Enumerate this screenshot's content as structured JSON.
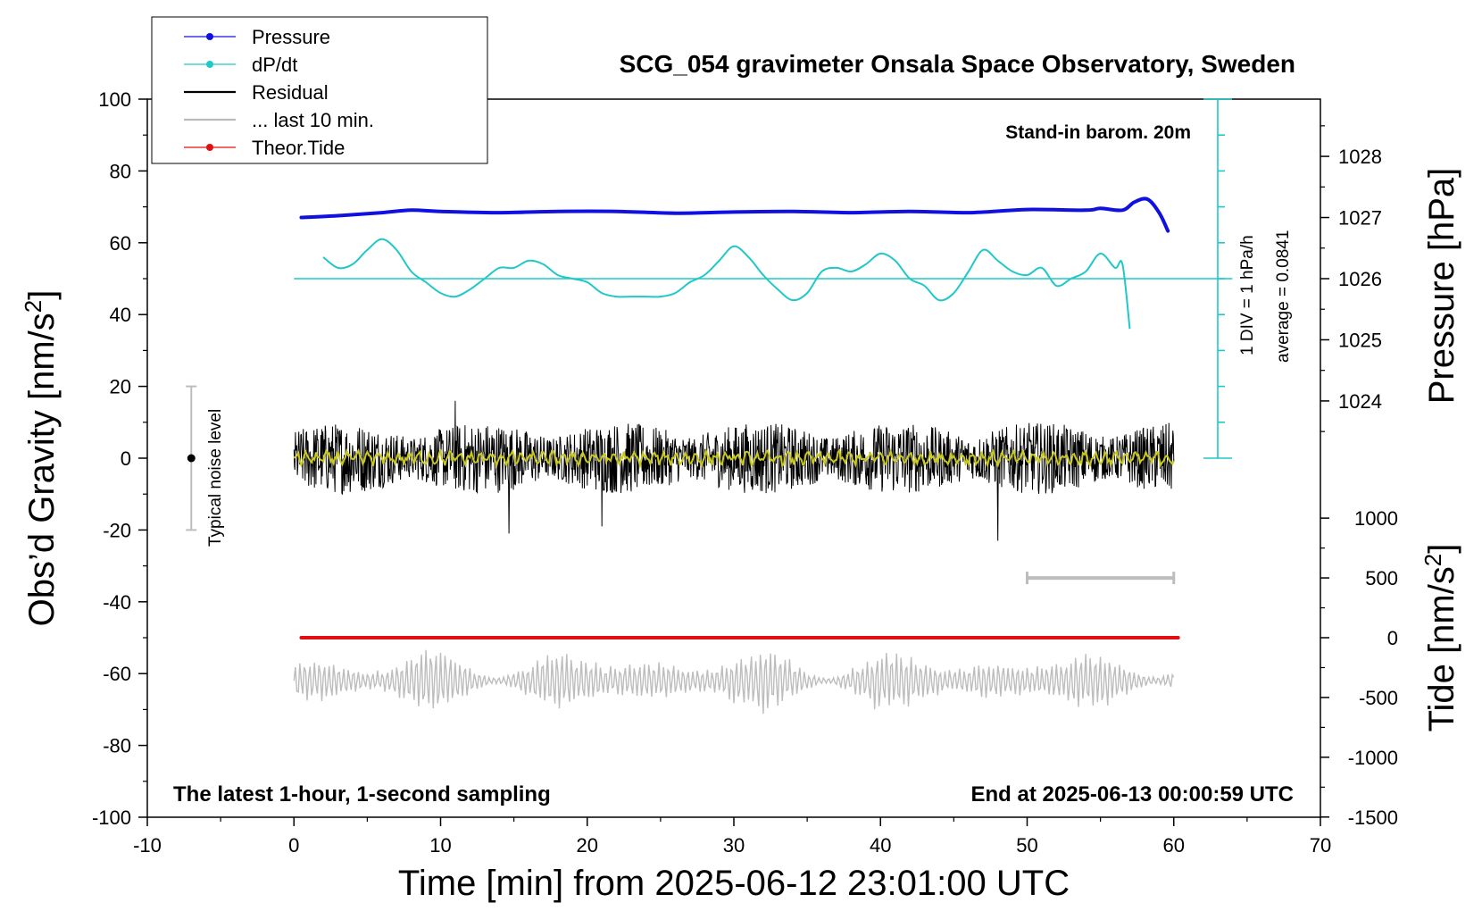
{
  "chart_data": {
    "type": "line",
    "title": "SCG_054 gravimeter Onsala Space Observatory, Sweden",
    "xlabel": "Time [min] from 2025-06-12 23:01:00 UTC",
    "ylabel_main": "Obs’d Gravity [nm/s",
    "ylabel_main_sup": "2",
    "ylabel_main_end": "]",
    "ylabel_pressure": "Pressure [hPa]",
    "ylabel_tide": "Tide [nm/s",
    "ylabel_tide_sup": "2",
    "ylabel_tide_end": "]",
    "xlim": [
      -10,
      70
    ],
    "ylim": [
      -100,
      100
    ],
    "x_ticks": [
      "-10",
      "0",
      "10",
      "20",
      "30",
      "40",
      "50",
      "60",
      "70"
    ],
    "y_ticks": [
      "100",
      "80",
      "60",
      "40",
      "20",
      "0",
      "-20",
      "-40",
      "-60",
      "-80",
      "-100"
    ],
    "pressure_ticks": [
      {
        "label": "1028",
        "value": 1028
      },
      {
        "label": "1027",
        "value": 1027
      },
      {
        "label": "1026",
        "value": 1026
      },
      {
        "label": "1025",
        "value": 1025
      },
      {
        "label": "1024",
        "value": 1024
      }
    ],
    "tide_ticks": [
      {
        "label": "1000",
        "value": 1000
      },
      {
        "label": "500",
        "value": 500
      },
      {
        "label": "0",
        "value": 0
      },
      {
        "label": "-500",
        "value": -500
      },
      {
        "label": "-1000",
        "value": -1000
      },
      {
        "label": "-1500",
        "value": -1500
      }
    ],
    "legend": [
      {
        "name": "Pressure",
        "color": "#1010e0",
        "style": "line-dot"
      },
      {
        "name": "dP/dt",
        "color": "#20c8c8",
        "style": "line-dot"
      },
      {
        "name": "Residual",
        "color": "#000000",
        "style": "line"
      },
      {
        "name": "... last 10 min.",
        "color": "#bbbbbb",
        "style": "line"
      },
      {
        "name": "Theor.Tide",
        "color": "#e01010",
        "style": "line-dot"
      }
    ],
    "legend_position": "top-left",
    "annotations": {
      "stand_in": "Stand-in barom. 20m",
      "div_scale": "1 DIV = 1 hPa/h",
      "average": "average = 0.0841",
      "noise": "Typical noise level",
      "latest": "The latest 1-hour, 1-second sampling",
      "end_at": "End at 2025-06-13 00:00:59 UTC"
    },
    "pressure_series": {
      "x": [
        0.5,
        3,
        6,
        8,
        10,
        14,
        18,
        22,
        26,
        30,
        34,
        38,
        42,
        46,
        50,
        54,
        55,
        56.5,
        57.3,
        58.2,
        59,
        59.6
      ],
      "hPa": [
        1027.0,
        1027.03,
        1027.08,
        1027.12,
        1027.1,
        1027.08,
        1027.1,
        1027.1,
        1027.07,
        1027.09,
        1027.1,
        1027.08,
        1027.1,
        1027.08,
        1027.13,
        1027.12,
        1027.15,
        1027.12,
        1027.25,
        1027.3,
        1027.08,
        1026.78
      ]
    },
    "dpdt_series": {
      "x": [
        2,
        3,
        4,
        5,
        6,
        7,
        8,
        9,
        10,
        11,
        12,
        13,
        14,
        15,
        16,
        17,
        18,
        19,
        20,
        21,
        22,
        23,
        24,
        25,
        26,
        27,
        28,
        29,
        30,
        31,
        32,
        33,
        34,
        35,
        36,
        37,
        38,
        39,
        40,
        41,
        42,
        43,
        44,
        45,
        46,
        47,
        48,
        49,
        50,
        51,
        52,
        53,
        54,
        55,
        56,
        56.5,
        57
      ],
      "y": [
        56,
        53,
        54,
        58,
        61,
        58,
        52,
        49,
        46,
        45,
        47,
        50,
        53,
        53,
        55,
        54,
        51,
        50,
        49,
        46,
        45,
        45,
        45,
        45,
        46,
        49,
        51,
        55,
        59,
        56,
        51,
        47,
        44,
        46,
        52,
        53,
        52,
        54,
        57,
        55,
        50,
        48,
        44,
        46,
        52,
        58,
        55,
        52,
        51,
        53,
        48,
        50,
        52,
        57,
        53,
        54,
        36
      ]
    },
    "dpdt_baseline": 50,
    "pressure_axis_bar": {
      "x": 63,
      "y_top": 100,
      "y_bottom": 0
    },
    "residual": {
      "x_start": 0,
      "x_end": 60,
      "y_center": 0,
      "envelope": 10,
      "extreme_min": -23,
      "extreme_max": 16
    },
    "residual_smooth": {
      "color": "#c8c820",
      "envelope": 2
    },
    "last10_bar": {
      "x_start": 50,
      "x_end": 60,
      "tide_value": 500
    },
    "theor_tide": {
      "x_start": 0.5,
      "x_end": 60.3,
      "tide_value": 0
    },
    "last10_trace": {
      "x_start": 0,
      "x_end": 60,
      "y_center": -62,
      "envelope": 10
    },
    "noise_bar": {
      "x": -7,
      "y_top": 20,
      "y_bottom": -20,
      "center": 0
    }
  }
}
